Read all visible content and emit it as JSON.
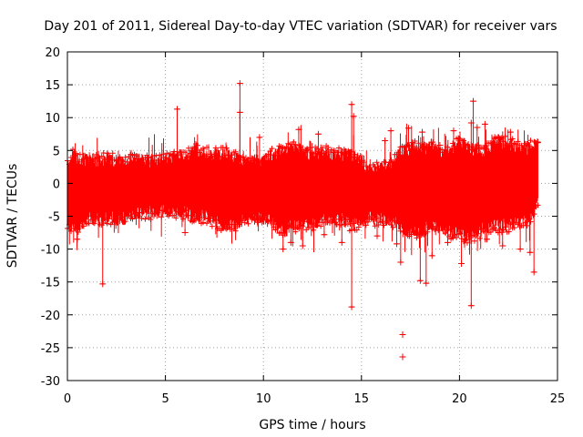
{
  "chart_data": {
    "type": "scatter",
    "title": "Day 201 of 2011, Sidereal Day-to-day VTEC variation (SDTVAR) for receiver vars",
    "xlabel": "GPS time / hours",
    "ylabel": "SDTVAR / TECUs",
    "xlim": [
      0,
      25
    ],
    "ylim": [
      -30,
      20
    ],
    "x_ticks": [
      0,
      5,
      10,
      15,
      20,
      25
    ],
    "y_ticks": [
      -30,
      -25,
      -20,
      -15,
      -10,
      -5,
      0,
      5,
      10,
      15,
      20
    ],
    "grid": true,
    "marker": "+",
    "color": "#ff0000",
    "series": [
      {
        "name": "SDTVAR",
        "envelope": {
          "x": [
            0,
            0.3,
            0.6,
            1,
            1.5,
            2,
            2.5,
            3,
            3.3,
            3.6,
            4,
            5,
            5.5,
            6,
            6.5,
            7,
            8,
            8.5,
            9,
            10,
            10.5,
            11,
            11.5,
            12,
            12.5,
            13,
            13.5,
            14,
            14.5,
            15,
            15.3,
            16,
            16.5,
            17,
            17.5,
            18,
            18.5,
            19,
            19.5,
            20,
            20.5,
            21,
            21.5,
            22,
            22.5,
            23,
            23.5,
            24
          ],
          "upper": [
            2,
            4,
            3,
            3.5,
            3,
            3.5,
            3,
            2.5,
            4,
            3.5,
            3,
            3,
            4,
            3.5,
            5,
            4,
            4,
            3.5,
            3,
            3,
            4,
            4.5,
            5,
            4.5,
            4,
            4.5,
            4,
            4,
            4,
            3,
            1.5,
            2,
            2,
            4.5,
            5,
            5,
            5,
            4.5,
            4,
            6,
            5,
            4.5,
            5,
            6,
            5.5,
            5,
            5,
            5.5
          ],
          "lower": [
            -6,
            -6,
            -6,
            -5,
            -5,
            -5,
            -5,
            -5,
            -4,
            -4,
            -4,
            -4,
            -4,
            -4,
            -5,
            -4.5,
            -6,
            -6,
            -5,
            -5,
            -5.5,
            -7,
            -6,
            -5.5,
            -6,
            -5,
            -5,
            -5,
            -6,
            -5.5,
            -5,
            -5,
            -5,
            -6,
            -7,
            -7,
            -6,
            -6,
            -7,
            -7,
            -8,
            -7,
            -6,
            -6,
            -6,
            -5.5,
            -5,
            -3
          ]
        },
        "outliers": {
          "x": [
            8.8,
            5.6,
            8.8,
            14.5,
            14.6,
            16.5,
            20.7,
            20.6,
            21.8,
            22.0,
            17.6,
            1.8,
            14.5,
            17.1,
            17.1,
            18.0,
            18.3,
            20.6,
            23.8,
            0.5,
            6.0,
            11.0,
            11.4,
            12.0,
            13.1,
            14.0,
            15.8,
            16.8,
            17.0,
            18.6,
            19.4,
            20.1,
            21.4,
            22.2,
            23.1,
            23.6,
            9.8,
            11.8,
            12.8,
            16.2,
            17.4,
            18.1,
            19.0,
            19.7,
            20.9,
            21.3,
            22.6,
            24.0
          ],
          "y": [
            15.2,
            11.3,
            10.8,
            12.0,
            10.2,
            8.0,
            12.5,
            9.2,
            7.0,
            7.0,
            6.2,
            -15.3,
            -18.8,
            -23.0,
            -26.4,
            -14.8,
            -15.2,
            -18.6,
            -13.5,
            -8.5,
            -7.5,
            -10.0,
            -9.0,
            -9.5,
            -7.8,
            -9.0,
            -8.0,
            -9.2,
            -12.0,
            -11.0,
            -9.0,
            -12.2,
            -8.5,
            -9.5,
            -10.0,
            -10.5,
            7.0,
            8.2,
            7.5,
            6.5,
            8.4,
            7.8,
            5.8,
            8.0,
            8.5,
            9.0,
            7.8,
            6.2
          ]
        }
      }
    ]
  }
}
